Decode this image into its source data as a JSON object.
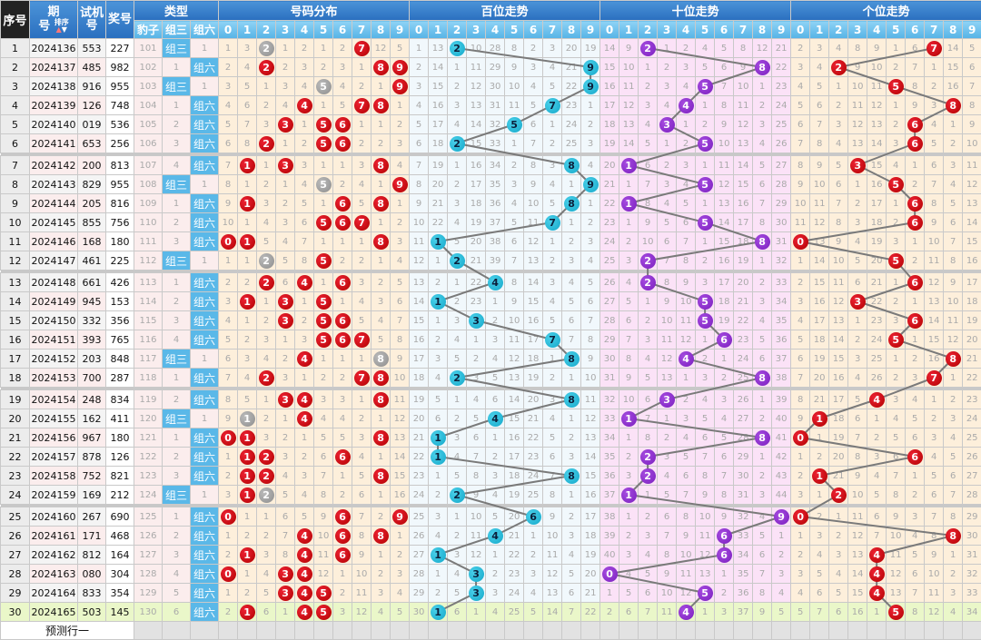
{
  "header": {
    "seq": "序号",
    "issue_top": "期",
    "issue_bottom": "号",
    "sort": "排序",
    "test_top": "试机",
    "test_bottom": "号",
    "draw": "奖号",
    "type": "类型",
    "dist": "号码分布",
    "hundreds": "百位走势",
    "tens": "十位走势",
    "units": "个位走势",
    "type_cols": [
      "豹子",
      "组三",
      "组六"
    ],
    "digits": [
      "0",
      "1",
      "2",
      "3",
      "4",
      "5",
      "6",
      "7",
      "8",
      "9"
    ]
  },
  "colors": {
    "hit_red": "#cc0000",
    "double_gray": "#999999",
    "hundreds_ball": "#1fb3d3",
    "tens_ball": "#8a2bc8",
    "units_ball": "#cc0000",
    "latest_row": "#eaf7c9"
  },
  "rows": [
    {
      "n": "1",
      "issue": "2024136",
      "test": "553",
      "draw": "227",
      "bz": "101",
      "z3": "组三",
      "z6": "1"
    },
    {
      "n": "2",
      "issue": "2024137",
      "test": "485",
      "draw": "982",
      "bz": "102",
      "z3": "1",
      "z6": "组六"
    },
    {
      "n": "3",
      "issue": "2024138",
      "test": "916",
      "draw": "955",
      "bz": "103",
      "z3": "组三",
      "z6": "1"
    },
    {
      "n": "4",
      "issue": "2024139",
      "test": "126",
      "draw": "748",
      "bz": "104",
      "z3": "1",
      "z6": "组六"
    },
    {
      "n": "5",
      "issue": "2024140",
      "test": "019",
      "draw": "536",
      "bz": "105",
      "z3": "2",
      "z6": "组六"
    },
    {
      "n": "6",
      "issue": "2024141",
      "test": "653",
      "draw": "256",
      "bz": "106",
      "z3": "3",
      "z6": "组六"
    },
    {
      "n": "7",
      "issue": "2024142",
      "test": "200",
      "draw": "813",
      "bz": "107",
      "z3": "4",
      "z6": "组六"
    },
    {
      "n": "8",
      "issue": "2024143",
      "test": "829",
      "draw": "955",
      "bz": "108",
      "z3": "组三",
      "z6": "1"
    },
    {
      "n": "9",
      "issue": "2024144",
      "test": "205",
      "draw": "816",
      "bz": "109",
      "z3": "1",
      "z6": "组六"
    },
    {
      "n": "10",
      "issue": "2024145",
      "test": "855",
      "draw": "756",
      "bz": "110",
      "z3": "2",
      "z6": "组六"
    },
    {
      "n": "11",
      "issue": "2024146",
      "test": "168",
      "draw": "180",
      "bz": "111",
      "z3": "3",
      "z6": "组六"
    },
    {
      "n": "12",
      "issue": "2024147",
      "test": "461",
      "draw": "225",
      "bz": "112",
      "z3": "组三",
      "z6": "1"
    },
    {
      "n": "13",
      "issue": "2024148",
      "test": "661",
      "draw": "426",
      "bz": "113",
      "z3": "1",
      "z6": "组六"
    },
    {
      "n": "14",
      "issue": "2024149",
      "test": "945",
      "draw": "153",
      "bz": "114",
      "z3": "2",
      "z6": "组六"
    },
    {
      "n": "15",
      "issue": "2024150",
      "test": "332",
      "draw": "356",
      "bz": "115",
      "z3": "3",
      "z6": "组六"
    },
    {
      "n": "16",
      "issue": "2024151",
      "test": "393",
      "draw": "765",
      "bz": "116",
      "z3": "4",
      "z6": "组六"
    },
    {
      "n": "17",
      "issue": "2024152",
      "test": "203",
      "draw": "848",
      "bz": "117",
      "z3": "组三",
      "z6": "1"
    },
    {
      "n": "18",
      "issue": "2024153",
      "test": "700",
      "draw": "287",
      "bz": "118",
      "z3": "1",
      "z6": "组六"
    },
    {
      "n": "19",
      "issue": "2024154",
      "test": "248",
      "draw": "834",
      "bz": "119",
      "z3": "2",
      "z6": "组六"
    },
    {
      "n": "20",
      "issue": "2024155",
      "test": "162",
      "draw": "411",
      "bz": "120",
      "z3": "组三",
      "z6": "1"
    },
    {
      "n": "21",
      "issue": "2024156",
      "test": "967",
      "draw": "180",
      "bz": "121",
      "z3": "1",
      "z6": "组六"
    },
    {
      "n": "22",
      "issue": "2024157",
      "test": "878",
      "draw": "126",
      "bz": "122",
      "z3": "2",
      "z6": "组六"
    },
    {
      "n": "23",
      "issue": "2024158",
      "test": "752",
      "draw": "821",
      "bz": "123",
      "z3": "3",
      "z6": "组六"
    },
    {
      "n": "24",
      "issue": "2024159",
      "test": "169",
      "draw": "212",
      "bz": "124",
      "z3": "组三",
      "z6": "1"
    },
    {
      "n": "25",
      "issue": "2024160",
      "test": "267",
      "draw": "690",
      "bz": "125",
      "z3": "1",
      "z6": "组六"
    },
    {
      "n": "26",
      "issue": "2024161",
      "test": "171",
      "draw": "468",
      "bz": "126",
      "z3": "2",
      "z6": "组六"
    },
    {
      "n": "27",
      "issue": "2024162",
      "test": "812",
      "draw": "164",
      "bz": "127",
      "z3": "3",
      "z6": "组六"
    },
    {
      "n": "28",
      "issue": "2024163",
      "test": "080",
      "draw": "304",
      "bz": "128",
      "z3": "4",
      "z6": "组六"
    },
    {
      "n": "29",
      "issue": "2024164",
      "test": "833",
      "draw": "354",
      "bz": "129",
      "z3": "5",
      "z6": "组六"
    },
    {
      "n": "30",
      "issue": "2024165",
      "test": "503",
      "draw": "145",
      "bz": "130",
      "z3": "6",
      "z6": "组六"
    }
  ],
  "dist": [
    [
      1,
      3,
      0,
      1,
      2,
      1,
      2,
      0,
      12,
      5
    ],
    [
      2,
      4,
      0,
      2,
      3,
      2,
      3,
      1,
      0,
      0
    ],
    [
      3,
      5,
      1,
      3,
      4,
      0,
      4,
      2,
      1,
      0
    ],
    [
      4,
      6,
      2,
      4,
      0,
      1,
      5,
      0,
      0,
      1
    ],
    [
      5,
      7,
      3,
      0,
      1,
      0,
      0,
      1,
      1,
      2
    ],
    [
      6,
      8,
      0,
      1,
      2,
      0,
      0,
      2,
      2,
      3
    ],
    [
      7,
      0,
      1,
      0,
      3,
      1,
      1,
      3,
      0,
      4
    ],
    [
      8,
      1,
      2,
      1,
      4,
      0,
      2,
      4,
      1,
      0
    ],
    [
      9,
      0,
      3,
      2,
      5,
      1,
      0,
      5,
      0,
      1
    ],
    [
      10,
      1,
      4,
      3,
      6,
      0,
      0,
      0,
      1,
      2
    ],
    [
      0,
      0,
      5,
      4,
      7,
      1,
      1,
      1,
      0,
      3
    ],
    [
      1,
      1,
      0,
      5,
      8,
      0,
      2,
      2,
      1,
      4
    ],
    [
      2,
      2,
      0,
      6,
      0,
      1,
      0,
      3,
      2,
      5
    ],
    [
      3,
      0,
      1,
      0,
      1,
      0,
      1,
      4,
      3,
      6
    ],
    [
      4,
      1,
      2,
      0,
      2,
      0,
      0,
      5,
      4,
      7
    ],
    [
      5,
      2,
      3,
      1,
      3,
      0,
      0,
      0,
      5,
      8
    ],
    [
      6,
      3,
      4,
      2,
      0,
      1,
      1,
      1,
      0,
      9
    ],
    [
      7,
      4,
      0,
      3,
      1,
      2,
      2,
      0,
      0,
      10
    ],
    [
      8,
      5,
      1,
      0,
      0,
      3,
      3,
      1,
      0,
      11
    ],
    [
      9,
      0,
      2,
      1,
      0,
      4,
      4,
      2,
      1,
      12
    ],
    [
      0,
      0,
      3,
      2,
      1,
      5,
      5,
      3,
      0,
      13
    ],
    [
      1,
      0,
      0,
      3,
      2,
      6,
      0,
      4,
      1,
      14
    ],
    [
      2,
      0,
      0,
      4,
      3,
      7,
      1,
      5,
      0,
      15
    ],
    [
      3,
      0,
      0,
      5,
      4,
      8,
      2,
      6,
      1,
      16
    ],
    [
      0,
      1,
      1,
      6,
      5,
      9,
      0,
      7,
      2,
      0
    ],
    [
      1,
      2,
      2,
      7,
      0,
      10,
      0,
      8,
      0,
      1
    ],
    [
      2,
      0,
      3,
      8,
      0,
      11,
      0,
      9,
      1,
      2
    ],
    [
      0,
      1,
      4,
      0,
      0,
      12,
      1,
      10,
      2,
      3
    ],
    [
      1,
      2,
      5,
      0,
      0,
      0,
      2,
      11,
      3,
      4
    ],
    [
      2,
      0,
      6,
      1,
      0,
      0,
      3,
      12,
      4,
      5
    ]
  ],
  "hundreds": [
    [
      1,
      13,
      0,
      10,
      28,
      8,
      2,
      3,
      20,
      19
    ],
    [
      2,
      14,
      1,
      11,
      29,
      9,
      3,
      4,
      21,
      0
    ],
    [
      3,
      15,
      2,
      12,
      30,
      10,
      4,
      5,
      22,
      0
    ],
    [
      4,
      16,
      3,
      13,
      31,
      11,
      5,
      0,
      23,
      1
    ],
    [
      5,
      17,
      4,
      14,
      32,
      0,
      6,
      1,
      24,
      2
    ],
    [
      6,
      18,
      0,
      15,
      33,
      1,
      7,
      2,
      25,
      3
    ],
    [
      7,
      19,
      1,
      16,
      34,
      2,
      8,
      3,
      0,
      4
    ],
    [
      8,
      20,
      2,
      17,
      35,
      3,
      9,
      4,
      1,
      0
    ],
    [
      9,
      21,
      3,
      18,
      36,
      4,
      10,
      5,
      0,
      1
    ],
    [
      10,
      22,
      4,
      19,
      37,
      5,
      11,
      0,
      1,
      2
    ],
    [
      11,
      0,
      5,
      20,
      38,
      6,
      12,
      1,
      2,
      3
    ],
    [
      12,
      1,
      0,
      21,
      39,
      7,
      13,
      2,
      3,
      4
    ],
    [
      13,
      2,
      1,
      22,
      0,
      8,
      14,
      3,
      4,
      5
    ],
    [
      14,
      0,
      2,
      23,
      1,
      9,
      15,
      4,
      5,
      6
    ],
    [
      15,
      1,
      3,
      0,
      2,
      10,
      16,
      5,
      6,
      7
    ],
    [
      16,
      2,
      4,
      1,
      3,
      11,
      17,
      0,
      7,
      8
    ],
    [
      17,
      3,
      5,
      2,
      4,
      12,
      18,
      1,
      0,
      9
    ],
    [
      18,
      4,
      0,
      3,
      5,
      13,
      19,
      2,
      1,
      10
    ],
    [
      19,
      5,
      1,
      4,
      6,
      14,
      20,
      3,
      0,
      11
    ],
    [
      20,
      6,
      2,
      5,
      0,
      15,
      21,
      4,
      1,
      12
    ],
    [
      21,
      0,
      3,
      6,
      1,
      16,
      22,
      5,
      2,
      13
    ],
    [
      22,
      0,
      4,
      7,
      2,
      17,
      23,
      6,
      3,
      14
    ],
    [
      23,
      1,
      5,
      8,
      3,
      18,
      24,
      7,
      0,
      15
    ],
    [
      24,
      2,
      0,
      9,
      4,
      19,
      25,
      8,
      1,
      16
    ],
    [
      25,
      3,
      1,
      10,
      5,
      20,
      0,
      9,
      2,
      17
    ],
    [
      26,
      4,
      2,
      11,
      0,
      21,
      1,
      10,
      3,
      18
    ],
    [
      27,
      0,
      3,
      12,
      1,
      22,
      2,
      11,
      4,
      19
    ],
    [
      28,
      1,
      4,
      0,
      2,
      23,
      3,
      12,
      5,
      20
    ],
    [
      29,
      2,
      5,
      0,
      3,
      24,
      4,
      13,
      6,
      21
    ],
    [
      30,
      0,
      6,
      1,
      4,
      25,
      5,
      14,
      7,
      22
    ]
  ],
  "tens": [
    [
      14,
      9,
      0,
      1,
      2,
      4,
      5,
      8,
      12,
      21
    ],
    [
      15,
      10,
      1,
      2,
      3,
      5,
      6,
      9,
      0,
      22
    ],
    [
      16,
      11,
      2,
      3,
      4,
      0,
      7,
      10,
      1,
      23
    ],
    [
      17,
      12,
      3,
      4,
      0,
      1,
      8,
      11,
      2,
      24
    ],
    [
      18,
      13,
      4,
      0,
      1,
      2,
      9,
      12,
      3,
      25
    ],
    [
      19,
      14,
      5,
      1,
      2,
      0,
      10,
      13,
      4,
      26
    ],
    [
      20,
      0,
      6,
      2,
      3,
      1,
      11,
      14,
      5,
      27
    ],
    [
      21,
      1,
      7,
      3,
      4,
      0,
      12,
      15,
      6,
      28
    ],
    [
      22,
      0,
      8,
      4,
      5,
      1,
      13,
      16,
      7,
      29
    ],
    [
      23,
      1,
      9,
      5,
      6,
      0,
      14,
      17,
      8,
      30
    ],
    [
      24,
      2,
      10,
      6,
      7,
      1,
      15,
      18,
      0,
      31
    ],
    [
      25,
      3,
      0,
      7,
      8,
      2,
      16,
      19,
      1,
      32
    ],
    [
      26,
      4,
      0,
      8,
      9,
      3,
      17,
      20,
      2,
      33
    ],
    [
      27,
      5,
      1,
      9,
      10,
      0,
      18,
      21,
      3,
      34
    ],
    [
      28,
      6,
      2,
      10,
      11,
      0,
      19,
      22,
      4,
      35
    ],
    [
      29,
      7,
      3,
      11,
      12,
      1,
      0,
      23,
      5,
      36
    ],
    [
      30,
      8,
      4,
      12,
      0,
      2,
      1,
      24,
      6,
      37
    ],
    [
      31,
      9,
      5,
      13,
      1,
      3,
      2,
      25,
      0,
      38
    ],
    [
      32,
      10,
      6,
      0,
      2,
      4,
      3,
      26,
      1,
      39
    ],
    [
      33,
      0,
      7,
      1,
      3,
      5,
      4,
      27,
      2,
      40
    ],
    [
      34,
      1,
      8,
      2,
      4,
      6,
      5,
      28,
      0,
      41
    ],
    [
      35,
      2,
      0,
      3,
      5,
      7,
      6,
      29,
      1,
      42
    ],
    [
      36,
      3,
      0,
      4,
      6,
      8,
      7,
      30,
      2,
      43
    ],
    [
      37,
      0,
      1,
      5,
      7,
      9,
      8,
      31,
      3,
      44
    ],
    [
      38,
      1,
      2,
      6,
      8,
      10,
      9,
      32,
      4,
      0
    ],
    [
      39,
      2,
      3,
      7,
      9,
      11,
      0,
      33,
      5,
      1
    ],
    [
      40,
      3,
      4,
      8,
      10,
      12,
      0,
      34,
      6,
      2
    ],
    [
      0,
      4,
      5,
      9,
      11,
      13,
      1,
      35,
      7,
      3
    ],
    [
      1,
      5,
      6,
      10,
      12,
      0,
      2,
      36,
      8,
      4
    ],
    [
      2,
      6,
      7,
      11,
      0,
      1,
      3,
      37,
      9,
      5
    ]
  ],
  "units": [
    [
      2,
      3,
      4,
      8,
      9,
      1,
      6,
      0,
      14,
      5
    ],
    [
      3,
      4,
      0,
      9,
      10,
      2,
      7,
      1,
      15,
      6
    ],
    [
      4,
      5,
      1,
      10,
      11,
      0,
      8,
      2,
      16,
      7
    ],
    [
      5,
      6,
      2,
      11,
      12,
      1,
      9,
      3,
      0,
      8
    ],
    [
      6,
      7,
      3,
      12,
      13,
      2,
      0,
      4,
      1,
      9
    ],
    [
      7,
      8,
      4,
      13,
      14,
      3,
      0,
      5,
      2,
      10
    ],
    [
      8,
      9,
      5,
      0,
      15,
      4,
      1,
      6,
      3,
      11
    ],
    [
      9,
      10,
      6,
      1,
      16,
      0,
      2,
      7,
      4,
      12
    ],
    [
      10,
      11,
      7,
      2,
      17,
      1,
      0,
      8,
      5,
      13
    ],
    [
      11,
      12,
      8,
      3,
      18,
      2,
      0,
      9,
      6,
      14
    ],
    [
      0,
      13,
      9,
      4,
      19,
      3,
      1,
      10,
      7,
      15
    ],
    [
      1,
      14,
      10,
      5,
      20,
      0,
      2,
      11,
      8,
      16
    ],
    [
      2,
      15,
      11,
      6,
      21,
      1,
      0,
      12,
      9,
      17
    ],
    [
      3,
      16,
      12,
      0,
      22,
      2,
      1,
      13,
      10,
      18
    ],
    [
      4,
      17,
      13,
      1,
      23,
      3,
      0,
      14,
      11,
      19
    ],
    [
      5,
      18,
      14,
      2,
      24,
      0,
      1,
      15,
      12,
      20
    ],
    [
      6,
      19,
      15,
      3,
      25,
      1,
      2,
      16,
      0,
      21
    ],
    [
      7,
      20,
      16,
      4,
      26,
      2,
      3,
      0,
      1,
      22
    ],
    [
      8,
      21,
      17,
      5,
      0,
      3,
      4,
      1,
      2,
      23
    ],
    [
      9,
      0,
      18,
      6,
      1,
      4,
      5,
      2,
      3,
      24
    ],
    [
      0,
      1,
      19,
      7,
      2,
      5,
      6,
      3,
      4,
      25
    ],
    [
      1,
      2,
      20,
      8,
      3,
      6,
      0,
      4,
      5,
      26
    ],
    [
      2,
      0,
      21,
      9,
      4,
      7,
      1,
      5,
      6,
      27
    ],
    [
      3,
      1,
      0,
      10,
      5,
      8,
      2,
      6,
      7,
      28
    ],
    [
      0,
      2,
      1,
      11,
      6,
      9,
      3,
      7,
      8,
      29
    ],
    [
      1,
      3,
      2,
      12,
      7,
      10,
      4,
      8,
      0,
      30
    ],
    [
      2,
      4,
      3,
      13,
      0,
      11,
      5,
      9,
      1,
      31
    ],
    [
      3,
      5,
      4,
      14,
      0,
      12,
      6,
      10,
      2,
      32
    ],
    [
      4,
      6,
      5,
      15,
      0,
      13,
      7,
      11,
      3,
      33
    ],
    [
      5,
      7,
      6,
      16,
      1,
      0,
      8,
      12,
      4,
      34
    ]
  ],
  "prediction": {
    "label": "预测行一"
  }
}
